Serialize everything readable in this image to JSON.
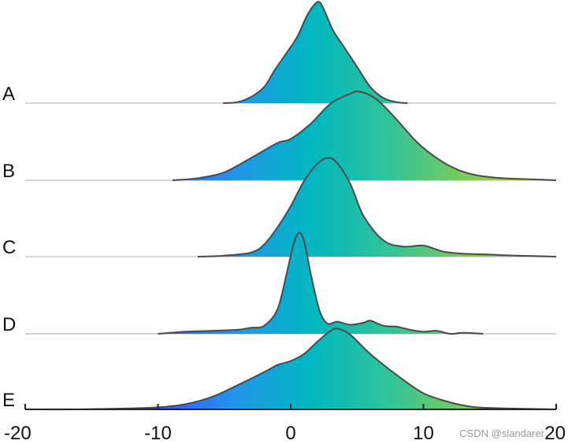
{
  "watermark": "CSDN @slandarer",
  "chart_data": {
    "type": "ridgeline",
    "title": "",
    "xlabel": "",
    "ylabel": "",
    "xlim": [
      -20,
      20
    ],
    "xticks": [
      -20,
      -10,
      0,
      10,
      20
    ],
    "grid": false,
    "legend": "none",
    "colormap": [
      "#3a55ff",
      "#2196e8",
      "#00b7c0",
      "#30c49a",
      "#7dcc58",
      "#dcc62a"
    ],
    "baseline_color": "#d9d9d9",
    "outline_color": "#4a4a4a",
    "series": [
      {
        "name": "A",
        "x": [
          -5.1,
          -4,
          -3,
          -2,
          -1.2,
          -0.3,
          0.5,
          1.2,
          1.8,
          2.2,
          2.6,
          3.2,
          4,
          5,
          6,
          7,
          8,
          8.8
        ],
        "y": [
          0.0,
          0.01,
          0.06,
          0.16,
          0.33,
          0.5,
          0.66,
          0.86,
          0.98,
          1.0,
          0.9,
          0.72,
          0.56,
          0.36,
          0.16,
          0.05,
          0.01,
          0.0
        ]
      },
      {
        "name": "B",
        "x": [
          -8.9,
          -7,
          -5,
          -3,
          -1,
          0,
          1.5,
          3,
          4.5,
          5.2,
          6.5,
          8,
          9.5,
          11,
          12.5,
          14,
          16,
          18,
          20
        ],
        "y": [
          0.0,
          0.02,
          0.08,
          0.22,
          0.37,
          0.41,
          0.56,
          0.76,
          0.86,
          0.88,
          0.8,
          0.6,
          0.38,
          0.22,
          0.11,
          0.05,
          0.02,
          0.01,
          0.0
        ]
      },
      {
        "name": "C",
        "x": [
          -7,
          -5,
          -3,
          -2,
          -1,
          0,
          1,
          2,
          2.8,
          3.5,
          4.5,
          5.5,
          7,
          8.5,
          10,
          11.5,
          13,
          15,
          17,
          20
        ],
        "y": [
          0.0,
          0.01,
          0.04,
          0.12,
          0.29,
          0.5,
          0.75,
          0.92,
          0.98,
          0.93,
          0.72,
          0.4,
          0.16,
          0.1,
          0.11,
          0.05,
          0.03,
          0.02,
          0.01,
          0.0
        ]
      },
      {
        "name": "D",
        "x": [
          -10,
          -8,
          -6,
          -4,
          -3,
          -2,
          -1,
          -0.3,
          0.2,
          0.6,
          1,
          1.6,
          2.2,
          2.8,
          3.5,
          4.5,
          5.5,
          6,
          7,
          8,
          9,
          10,
          11,
          12,
          13,
          14.5
        ],
        "y": [
          0.0,
          0.02,
          0.03,
          0.04,
          0.06,
          0.08,
          0.24,
          0.6,
          0.88,
          1.0,
          0.92,
          0.54,
          0.22,
          0.1,
          0.12,
          0.09,
          0.11,
          0.13,
          0.08,
          0.07,
          0.04,
          0.02,
          0.03,
          0.0,
          0.01,
          0.0
        ]
      },
      {
        "name": "E",
        "x": [
          -20,
          -16,
          -12,
          -10,
          -8,
          -6,
          -4,
          -2,
          -1,
          0,
          1,
          2,
          3,
          3.6,
          4.5,
          6,
          8,
          10,
          12,
          13,
          14,
          16,
          18,
          20
        ],
        "y": [
          0.0,
          0.0,
          0.01,
          0.02,
          0.05,
          0.12,
          0.24,
          0.37,
          0.44,
          0.48,
          0.55,
          0.67,
          0.78,
          0.8,
          0.74,
          0.55,
          0.34,
          0.16,
          0.07,
          0.04,
          0.02,
          0.01,
          0.005,
          0.0
        ]
      }
    ]
  }
}
